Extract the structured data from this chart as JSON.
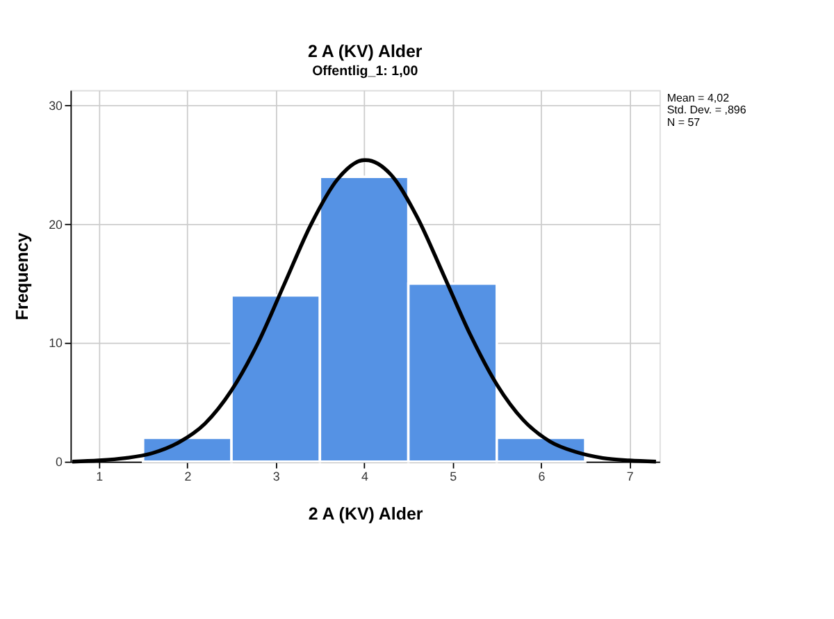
{
  "chart_data": {
    "type": "histogram",
    "title": "2 A (KV) Alder",
    "subtitle": "Offentlig_1: 1,00",
    "xlabel": "2 A (KV) Alder",
    "ylabel": "Frequency",
    "bins": [
      1.5,
      2.5,
      3.5,
      4.5,
      5.5,
      6.5
    ],
    "series": [
      {
        "type": "histogram",
        "color": "#5592e4",
        "values": [
          2,
          14,
          24,
          15,
          2
        ]
      },
      {
        "type": "line",
        "color": "#000000",
        "x": [
          0.7,
          1.0,
          1.3,
          1.6,
          1.9,
          2.2,
          2.5,
          2.8,
          3.1,
          3.4,
          3.7,
          4.0,
          4.02,
          4.3,
          4.6,
          4.9,
          5.2,
          5.5,
          5.8,
          6.1,
          6.4,
          6.7,
          7.0,
          7.3
        ],
        "values": [
          0.0,
          0.1,
          0.3,
          0.7,
          1.6,
          3.2,
          6.0,
          10.0,
          15.0,
          20.0,
          23.8,
          25.4,
          25.4,
          24.2,
          20.6,
          15.7,
          10.7,
          6.5,
          3.5,
          1.7,
          0.8,
          0.3,
          0.1,
          0.0
        ]
      }
    ],
    "xlim": [
      0.68,
      7.34
    ],
    "xticks": [
      1,
      2,
      3,
      4,
      5,
      6,
      7
    ],
    "ylim": [
      0,
      31.3
    ],
    "yticks": [
      0,
      10,
      20,
      30
    ],
    "grid": true,
    "annotations": [
      "Mean = 4,02",
      "Std. Dev. = ,896",
      "N = 57"
    ]
  }
}
